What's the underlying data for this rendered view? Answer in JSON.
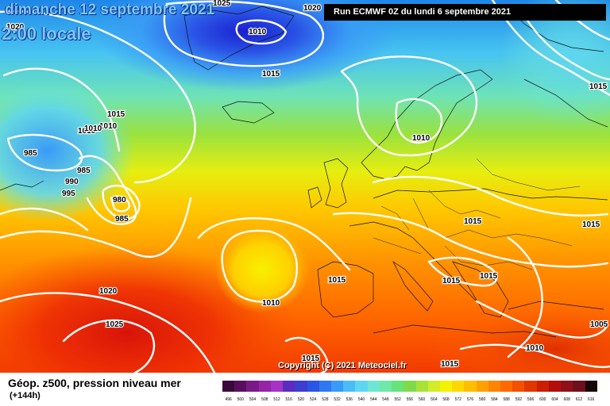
{
  "header": {
    "date": "dimanche 12 septembre 2021",
    "time": "2:00 locale",
    "run": "Run ECMWF 0Z du lundi 6 septembre 2021"
  },
  "copyright": "Copyright (C) 2021 Meteociel.fr",
  "legend": {
    "title": "Géop. z500, pression niveau mer",
    "subtitle": "(+144h)",
    "levels": [
      "496",
      "500",
      "504",
      "508",
      "512",
      "516",
      "520",
      "524",
      "528",
      "532",
      "536",
      "540",
      "544",
      "548",
      "552",
      "556",
      "560",
      "564",
      "568",
      "572",
      "576",
      "580",
      "584",
      "588",
      "592",
      "596",
      "600",
      "604",
      "608",
      "612",
      "616"
    ],
    "colors": [
      "#3a0a3a",
      "#5a0f5e",
      "#7a1a86",
      "#9426a6",
      "#a533c4",
      "#5a2dbf",
      "#3d3dd0",
      "#2a55e6",
      "#2f78f2",
      "#3a9af7",
      "#4cbcf8",
      "#5fd6f0",
      "#6ee6d2",
      "#6fe8a8",
      "#68e27a",
      "#7ddb4a",
      "#a6e23a",
      "#d2ec2a",
      "#f4f200",
      "#ffd800",
      "#ffbe00",
      "#ffa100",
      "#ff8400",
      "#ff6a00",
      "#f45000",
      "#e23600",
      "#cc1e00",
      "#b30d0d",
      "#8f0f1a",
      "#6e0f1e",
      "#160808"
    ]
  },
  "map": {
    "pressure_labels": [
      "1025",
      "1020",
      "1010",
      "1020",
      "1015",
      "1015",
      "1010",
      "1010",
      "1010",
      "985",
      "985",
      "990",
      "995",
      "980",
      "985",
      "1010",
      "1015",
      "1015",
      "1015",
      "1010",
      "1020",
      "1025",
      "1015",
      "1015",
      "1015",
      "1005",
      "1010"
    ]
  }
}
